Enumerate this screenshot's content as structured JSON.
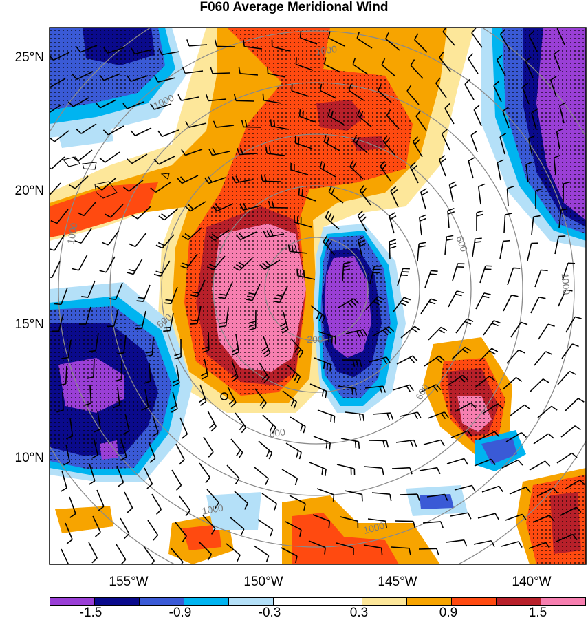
{
  "title": "F060 Average Meridional Wind",
  "lat_labels": [
    "25°N",
    "20°N",
    "15°N",
    "10°N"
  ],
  "lon_labels": [
    "155°W",
    "150°W",
    "145°W",
    "140°W"
  ],
  "radius_labels": [
    "1000",
    "1000",
    "1000",
    "1000",
    "600",
    "600",
    "600",
    "600",
    "200",
    "1000",
    "1000"
  ],
  "colorbar": {
    "colors": [
      "#9a3fd6",
      "#0a0a8c",
      "#3a5ad6",
      "#00b4f0",
      "#b4e0f8",
      "#ffffff",
      "#ffffff",
      "#fde79a",
      "#f7a400",
      "#ff4a10",
      "#b8202a",
      "#f77fb0"
    ],
    "labels": [
      "-1.5",
      "-0.9",
      "-0.3",
      "0.3",
      "0.9",
      "1.5"
    ]
  },
  "colors": {
    "purple": "#9a3fd6",
    "navy": "#0a0a8c",
    "blue": "#3a5ad6",
    "cyan": "#00b4f0",
    "lightblue": "#b4e0f8",
    "yellow": "#fde79a",
    "orange": "#f7a400",
    "redorange": "#ff4a10",
    "darkred": "#b8202a",
    "pink": "#f77fb0",
    "grid": "#8a8a8a"
  }
}
